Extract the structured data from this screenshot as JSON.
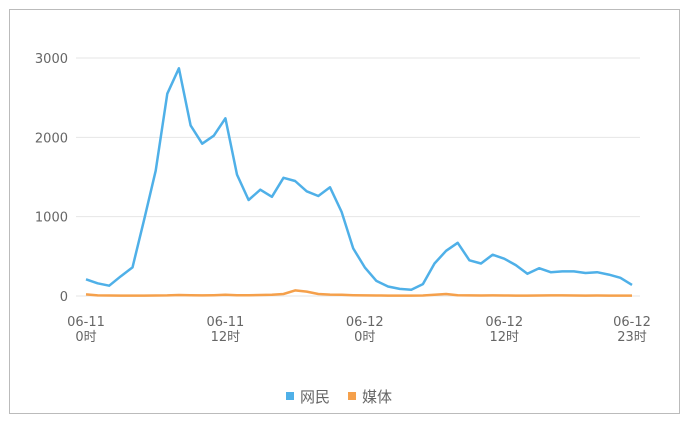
{
  "chart_data": {
    "type": "line",
    "categories": [
      "06-11\n0时",
      null,
      null,
      null,
      null,
      null,
      null,
      null,
      null,
      null,
      null,
      null,
      "06-11\n12时",
      null,
      null,
      null,
      null,
      null,
      null,
      null,
      null,
      null,
      null,
      null,
      "06-12\n0时",
      null,
      null,
      null,
      null,
      null,
      null,
      null,
      null,
      null,
      null,
      null,
      "06-12\n12时",
      null,
      null,
      null,
      null,
      null,
      null,
      null,
      null,
      null,
      null,
      "06-12\n23时"
    ],
    "series": [
      {
        "name": "网民",
        "color": "#4fb0e8",
        "values": [
          210,
          160,
          130,
          250,
          360,
          960,
          1580,
          2550,
          2870,
          2150,
          1920,
          2020,
          2240,
          1530,
          1210,
          1340,
          1250,
          1490,
          1450,
          1320,
          1260,
          1370,
          1060,
          600,
          360,
          190,
          120,
          90,
          80,
          150,
          410,
          570,
          670,
          450,
          410,
          520,
          470,
          390,
          280,
          350,
          300,
          310,
          310,
          290,
          300,
          270,
          230,
          140
        ]
      },
      {
        "name": "媒体",
        "color": "#f5a04b",
        "values": [
          20,
          8,
          6,
          5,
          5,
          5,
          6,
          8,
          12,
          10,
          8,
          10,
          15,
          10,
          10,
          12,
          15,
          25,
          70,
          55,
          25,
          18,
          15,
          10,
          8,
          6,
          5,
          5,
          5,
          6,
          15,
          25,
          10,
          8,
          6,
          8,
          6,
          5,
          5,
          6,
          8,
          8,
          6,
          5,
          6,
          5,
          5,
          5
        ]
      }
    ],
    "ylim": [
      0,
      3000
    ],
    "yticks": [
      0,
      1000,
      2000,
      3000
    ],
    "grid": true,
    "legend": "bottom"
  }
}
